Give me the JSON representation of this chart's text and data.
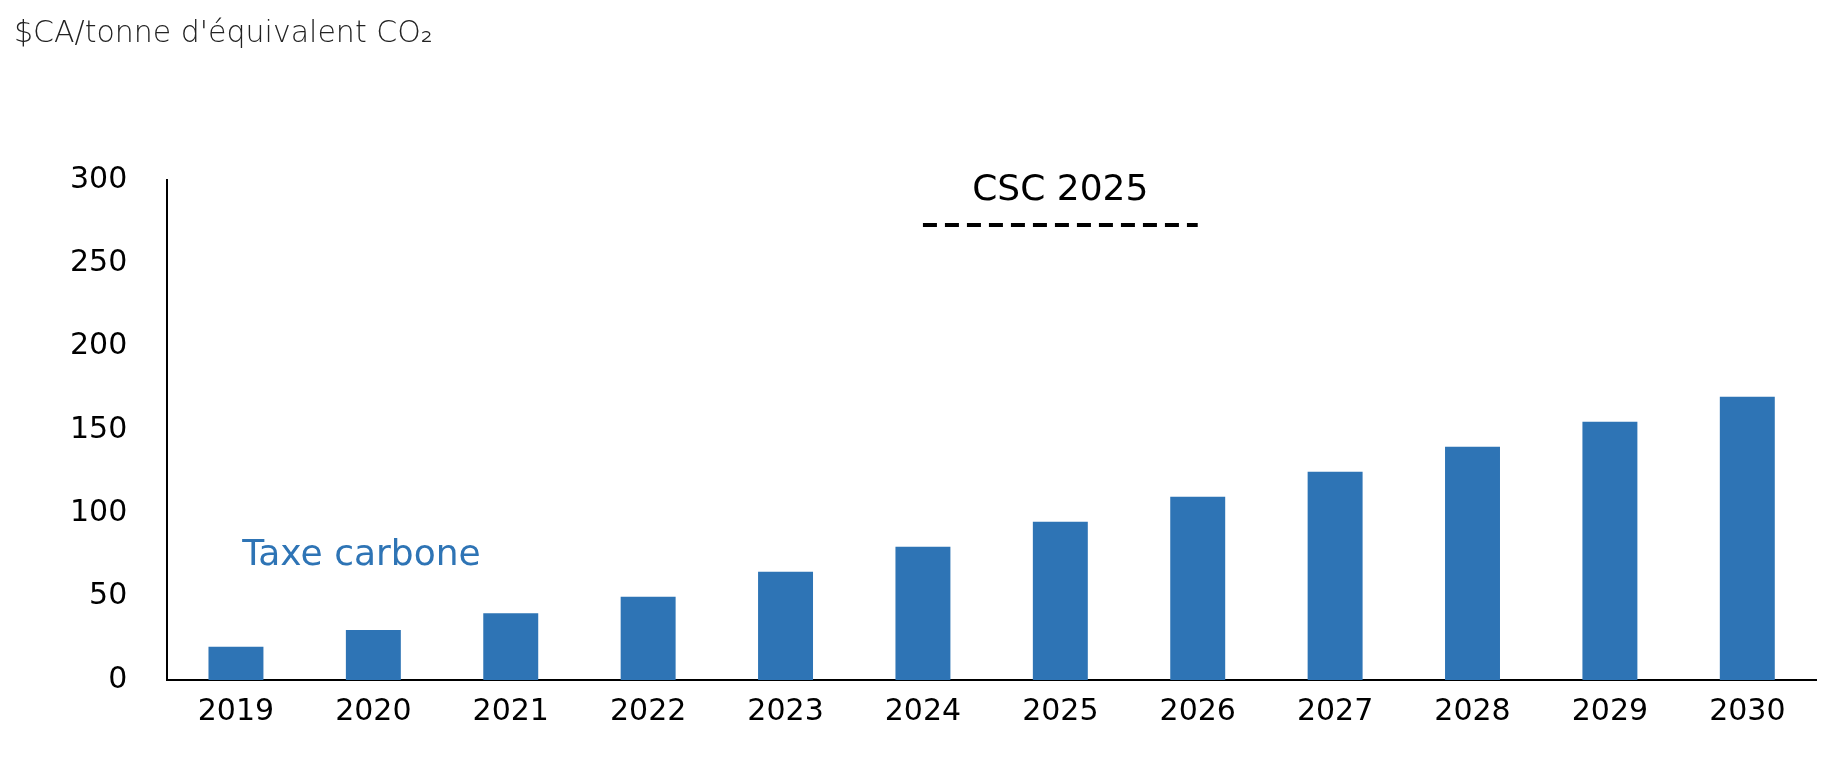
{
  "chart_data": {
    "type": "bar",
    "ylabel": "$CA/tonne d'équivalent CO₂",
    "categories": [
      "2019",
      "2020",
      "2021",
      "2022",
      "2023",
      "2024",
      "2025",
      "2026",
      "2027",
      "2028",
      "2029",
      "2030"
    ],
    "series": [
      {
        "name": "Taxe carbone",
        "color": "#2e74b5",
        "values": [
          20,
          30,
          40,
          50,
          65,
          80,
          95,
          110,
          125,
          140,
          155,
          170
        ]
      },
      {
        "name": "CSC 2025",
        "type": "line",
        "line_style": "dashed",
        "color": "#000000",
        "values": [
          null,
          null,
          null,
          null,
          null,
          273,
          273,
          273,
          null,
          null,
          null,
          null
        ]
      }
    ],
    "ylim": [
      0,
      300
    ],
    "yticks": [
      0,
      50,
      100,
      150,
      200,
      250,
      300
    ],
    "grid": false,
    "legend": false
  }
}
